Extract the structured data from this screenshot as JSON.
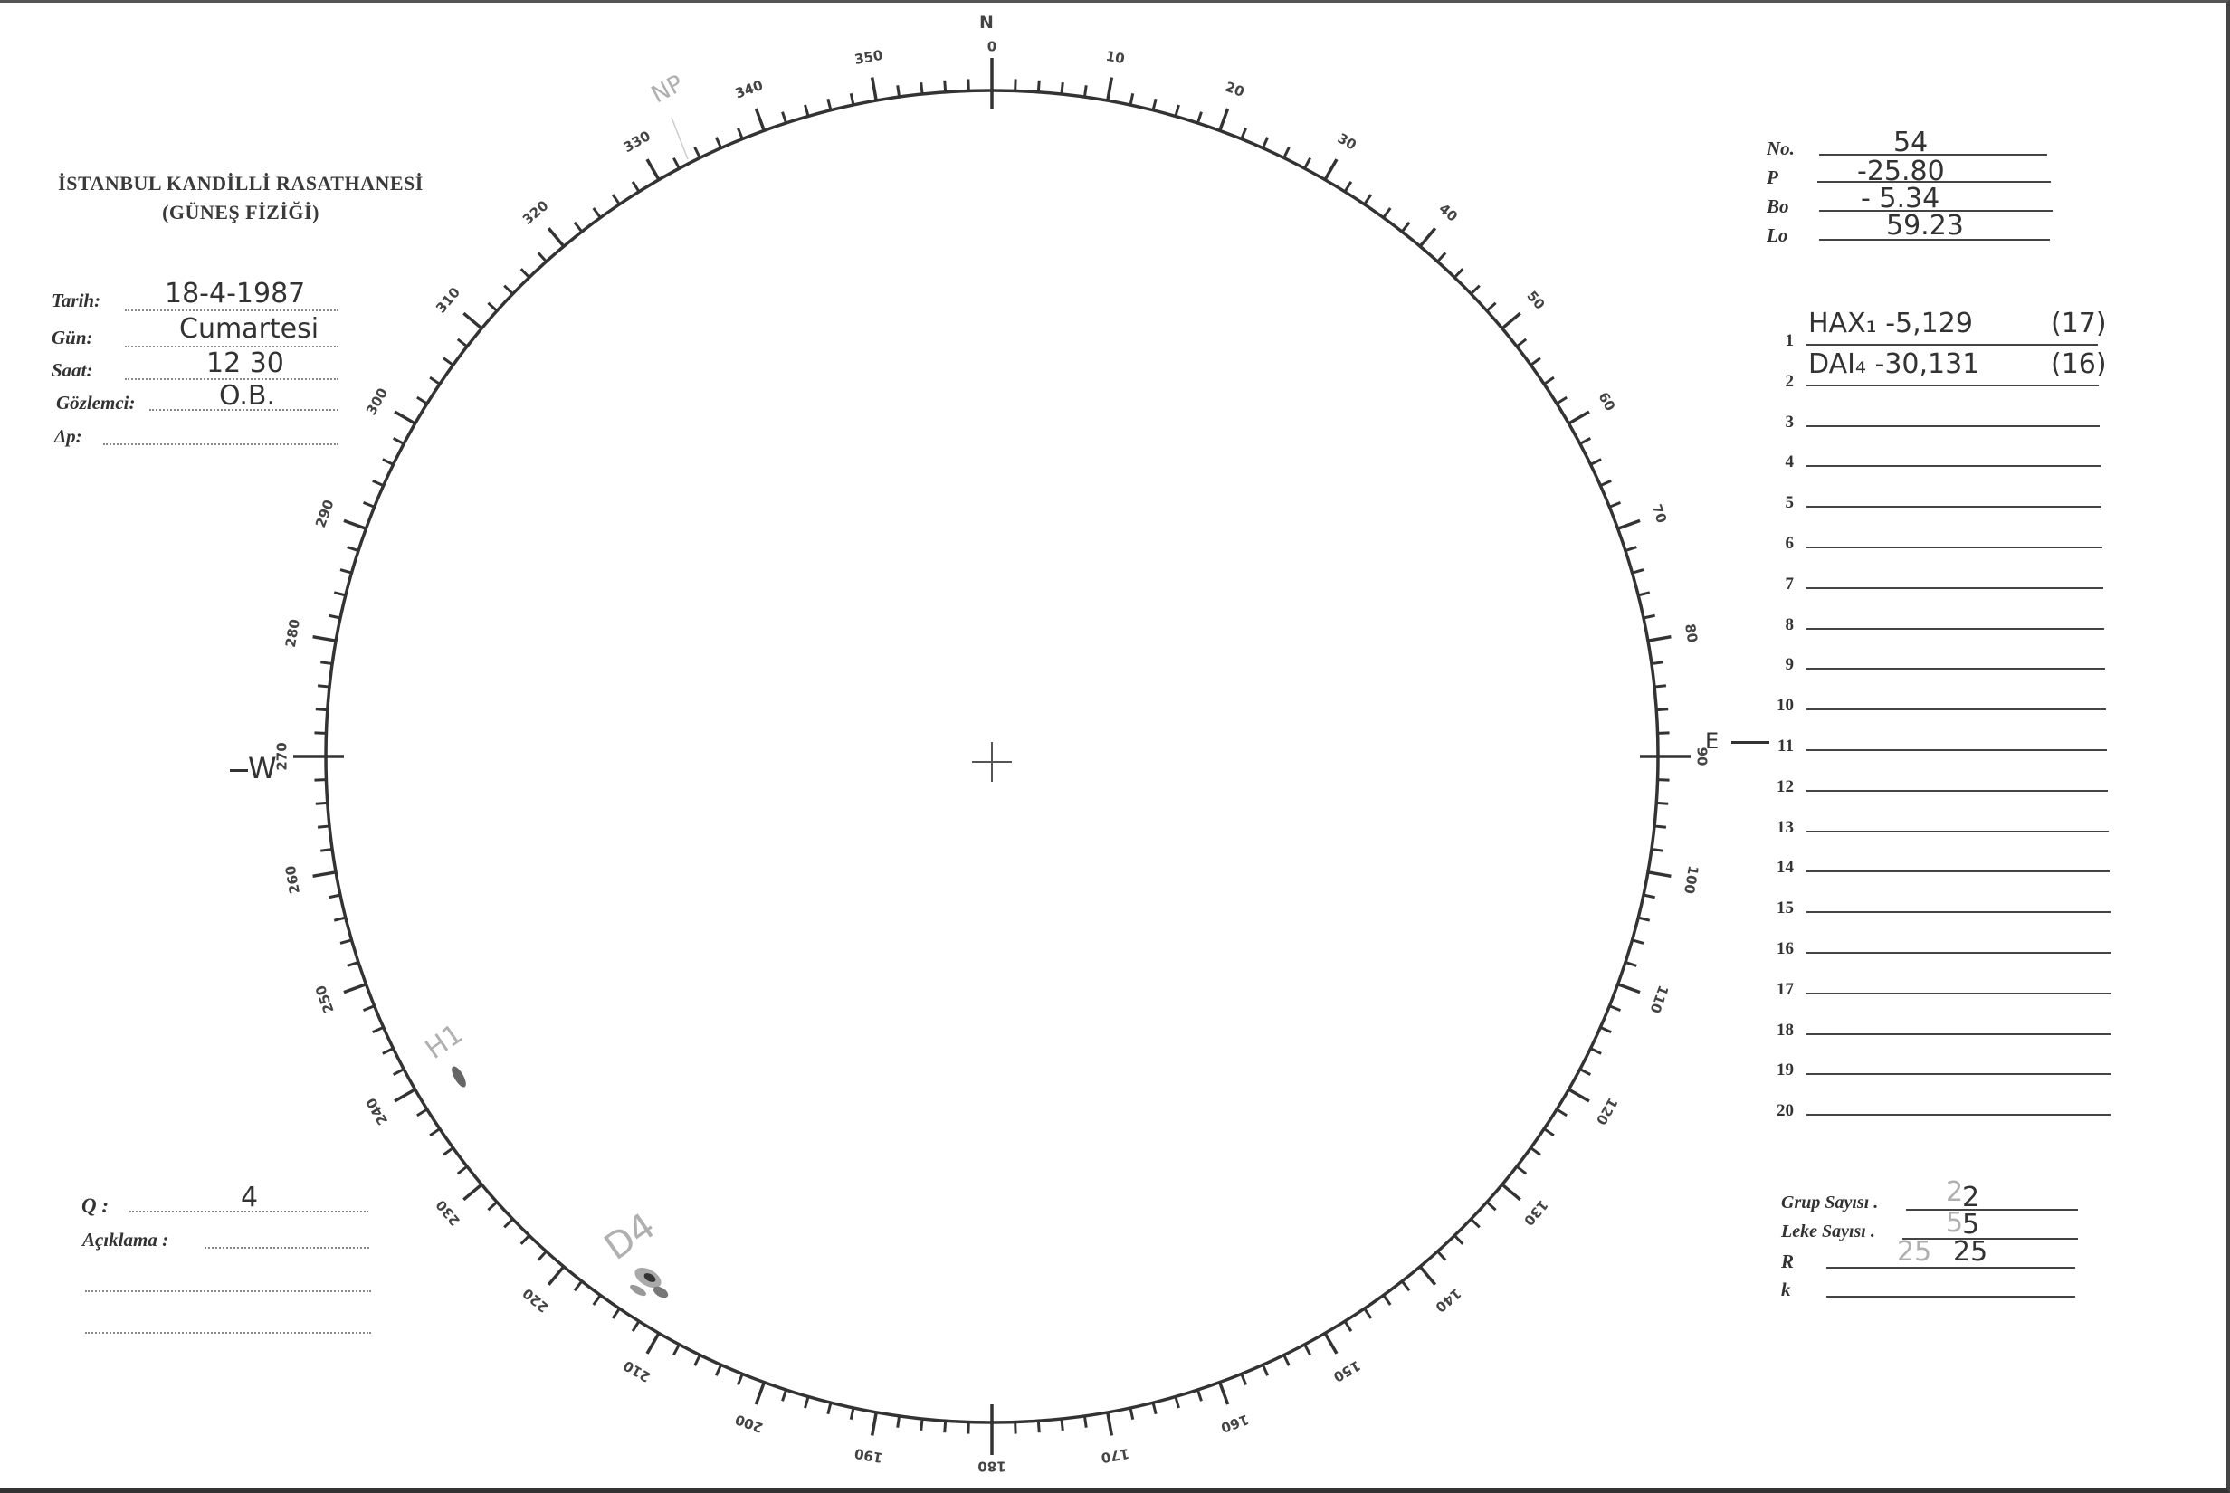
{
  "header": {
    "institution": "İSTANBUL KANDİLLİ RASATHANESİ",
    "department": "(GÜNEŞ FİZİĞİ)"
  },
  "observation": {
    "fields": [
      {
        "label": "Tarih:",
        "value": "18-4-1987"
      },
      {
        "label": "Gün:",
        "value": "Cumartesi"
      },
      {
        "label": "Saat:",
        "value": "12 30"
      },
      {
        "label": "Gözlemci:",
        "value": "O.B."
      },
      {
        "label": "Δp:",
        "value": ""
      }
    ]
  },
  "ephemeris": {
    "fields": [
      {
        "label": "No.",
        "value": "54"
      },
      {
        "label": "P",
        "value": "-25.80"
      },
      {
        "label": "Bo",
        "value": "- 5.34"
      },
      {
        "label": "Lo",
        "value": "59.23"
      }
    ]
  },
  "groups": {
    "rows": [
      {
        "n": "1",
        "text": "HAX₁ -5,129",
        "extra": "(17)"
      },
      {
        "n": "2",
        "text": "DAI₄ -30,131",
        "extra": "(16)"
      },
      {
        "n": "3",
        "text": "",
        "extra": ""
      },
      {
        "n": "4",
        "text": "",
        "extra": ""
      },
      {
        "n": "5",
        "text": "",
        "extra": ""
      },
      {
        "n": "6",
        "text": "",
        "extra": ""
      },
      {
        "n": "7",
        "text": "",
        "extra": ""
      },
      {
        "n": "8",
        "text": "",
        "extra": ""
      },
      {
        "n": "9",
        "text": "",
        "extra": ""
      },
      {
        "n": "10",
        "text": "",
        "extra": ""
      },
      {
        "n": "11",
        "text": "",
        "extra": ""
      },
      {
        "n": "12",
        "text": "",
        "extra": ""
      },
      {
        "n": "13",
        "text": "",
        "extra": ""
      },
      {
        "n": "14",
        "text": "",
        "extra": ""
      },
      {
        "n": "15",
        "text": "",
        "extra": ""
      },
      {
        "n": "16",
        "text": "",
        "extra": ""
      },
      {
        "n": "17",
        "text": "",
        "extra": ""
      },
      {
        "n": "18",
        "text": "",
        "extra": ""
      },
      {
        "n": "19",
        "text": "",
        "extra": ""
      },
      {
        "n": "20",
        "text": "",
        "extra": ""
      }
    ]
  },
  "summary": {
    "fields": [
      {
        "label": "Grup Sayısı .",
        "pencil": "2",
        "value": "2"
      },
      {
        "label": "Leke Sayısı .",
        "pencil": "5",
        "value": "5"
      },
      {
        "label": "R",
        "pencil": "25",
        "value": "25"
      },
      {
        "label": "k",
        "pencil": "",
        "value": ""
      }
    ]
  },
  "notes": {
    "q_label": "Q :",
    "q_value": "4",
    "aciklama_label": "Açıklama :"
  },
  "disk": {
    "north": "N",
    "east": "E",
    "west": "W",
    "np_label": "NP",
    "scale_labels": [
      "0",
      "10",
      "20",
      "30",
      "40",
      "50",
      "60",
      "70",
      "80",
      "90",
      "100",
      "110",
      "120",
      "130",
      "140",
      "150",
      "160",
      "170",
      "180",
      "190",
      "200",
      "210",
      "220",
      "230",
      "240",
      "250",
      "260",
      "270",
      "280",
      "290",
      "300",
      "310",
      "320",
      "330",
      "340",
      "350"
    ],
    "spot_labels": [
      {
        "label": "H1"
      },
      {
        "label": "D4"
      }
    ]
  }
}
